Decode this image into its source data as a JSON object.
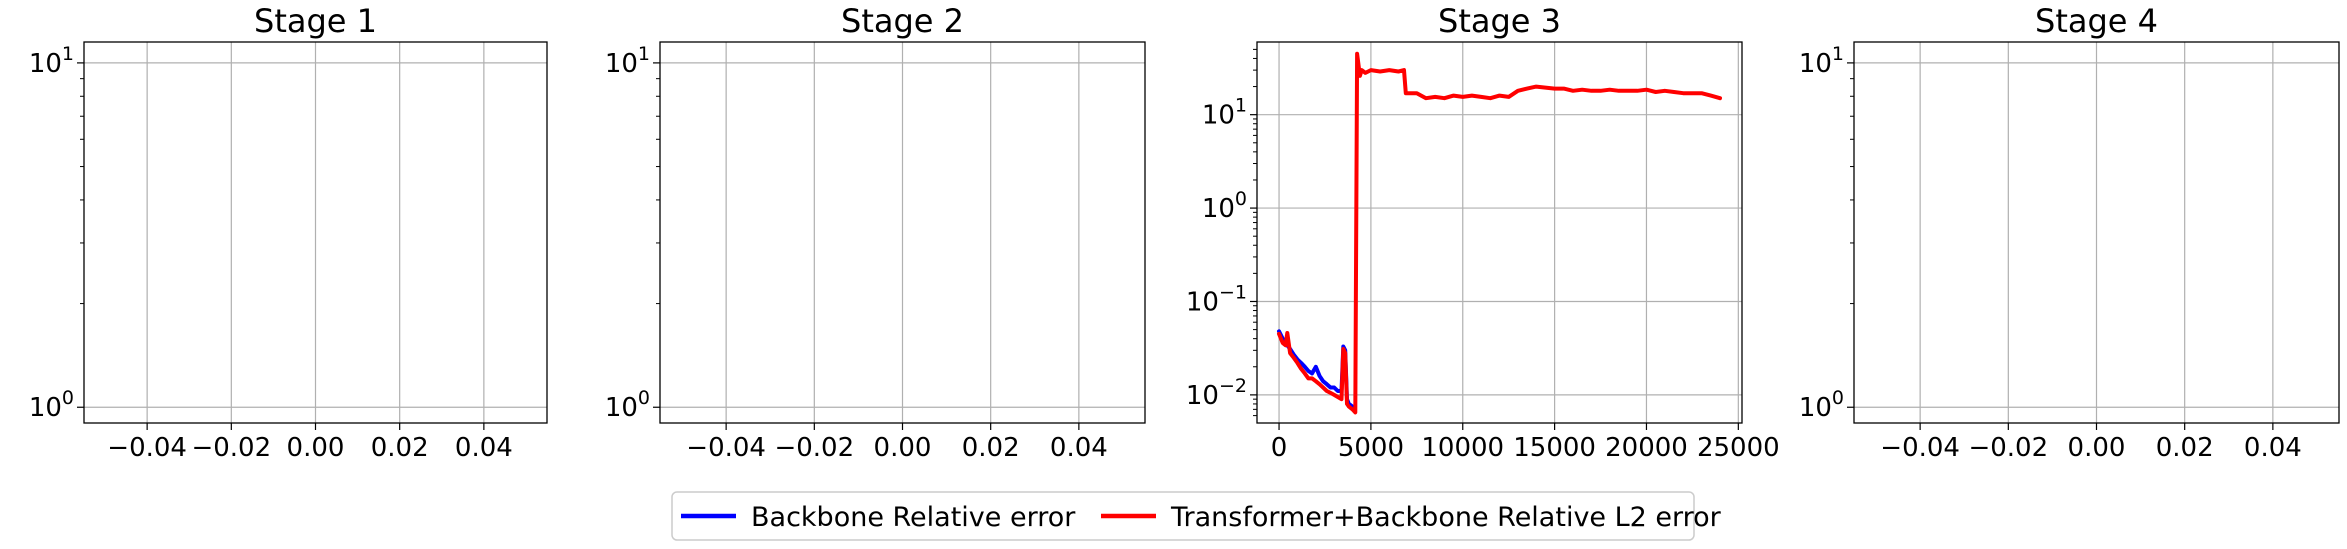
{
  "chart_data": [
    {
      "type": "line",
      "title": "Stage 1",
      "xscale": "linear",
      "yscale": "log",
      "xlim": [
        -0.055,
        0.055
      ],
      "ylim": [
        0.9,
        11.5
      ],
      "xticks": [
        -0.04,
        -0.02,
        0.0,
        0.02,
        0.04
      ],
      "xtick_labels": [
        "−0.04",
        "−0.02",
        "0.00",
        "0.02",
        "0.04"
      ],
      "yticks": [
        1,
        10
      ],
      "ytick_labels": [
        {
          "base": "10",
          "exp": "0"
        },
        {
          "base": "10",
          "exp": "1"
        }
      ],
      "grid": true,
      "series": []
    },
    {
      "type": "line",
      "title": "Stage 2",
      "xscale": "linear",
      "yscale": "log",
      "xlim": [
        -0.055,
        0.055
      ],
      "ylim": [
        0.9,
        11.5
      ],
      "xticks": [
        -0.04,
        -0.02,
        0.0,
        0.02,
        0.04
      ],
      "xtick_labels": [
        "−0.04",
        "−0.02",
        "0.00",
        "0.02",
        "0.04"
      ],
      "yticks": [
        1,
        10
      ],
      "ytick_labels": [
        {
          "base": "10",
          "exp": "0"
        },
        {
          "base": "10",
          "exp": "1"
        }
      ],
      "grid": true,
      "series": []
    },
    {
      "type": "line",
      "title": "Stage 3",
      "xscale": "linear",
      "yscale": "log",
      "xlim": [
        -1200,
        25200
      ],
      "ylim": [
        0.005,
        60
      ],
      "xticks": [
        0,
        5000,
        10000,
        15000,
        20000,
        25000
      ],
      "xtick_labels": [
        "0",
        "5000",
        "10000",
        "15000",
        "20000",
        "25000"
      ],
      "yticks": [
        0.01,
        0.1,
        1,
        10
      ],
      "ytick_labels": [
        {
          "base": "10",
          "exp": "−2"
        },
        {
          "base": "10",
          "exp": "−1"
        },
        {
          "base": "10",
          "exp": "0"
        },
        {
          "base": "10",
          "exp": "1"
        }
      ],
      "grid": true,
      "series": [
        {
          "name": "Backbone Relative error",
          "color": "#0000ff",
          "x": [
            0,
            200,
            400,
            600,
            800,
            1000,
            1200,
            1400,
            1600,
            1800,
            2000,
            2200,
            2400,
            2600,
            2800,
            3000,
            3200,
            3400,
            3500,
            3600,
            3700,
            3800,
            4000,
            4100
          ],
          "y": [
            0.048,
            0.04,
            0.035,
            0.031,
            0.027,
            0.024,
            0.022,
            0.02,
            0.018,
            0.017,
            0.02,
            0.016,
            0.014,
            0.013,
            0.012,
            0.012,
            0.011,
            0.011,
            0.033,
            0.03,
            0.009,
            0.008,
            0.0075,
            0.007
          ]
        },
        {
          "name": "Transformer+Backbone Relative L2 error",
          "color": "#ff0000",
          "x": [
            0,
            200,
            350,
            450,
            600,
            800,
            1000,
            1200,
            1400,
            1600,
            1800,
            2000,
            2200,
            2400,
            2600,
            2800,
            3000,
            3200,
            3400,
            3500,
            3600,
            3700,
            3800,
            4000,
            4150,
            4250,
            4400,
            4500,
            4700,
            5000,
            5500,
            6000,
            6500,
            6800,
            6900,
            7500,
            8000,
            8500,
            9000,
            9500,
            10000,
            10500,
            11000,
            11500,
            12000,
            12500,
            13000,
            13500,
            14000,
            14500,
            15000,
            15500,
            16000,
            16500,
            17000,
            17500,
            18000,
            18500,
            19000,
            19500,
            20000,
            20500,
            21000,
            21500,
            22000,
            22500,
            23000,
            23500,
            24000
          ],
          "y": [
            0.045,
            0.036,
            0.034,
            0.046,
            0.028,
            0.025,
            0.022,
            0.019,
            0.017,
            0.015,
            0.015,
            0.014,
            0.013,
            0.012,
            0.011,
            0.0105,
            0.01,
            0.0095,
            0.009,
            0.031,
            0.028,
            0.008,
            0.0075,
            0.007,
            0.0065,
            45,
            26,
            30,
            28,
            30,
            29,
            30,
            29,
            30,
            17,
            17,
            15,
            15.5,
            15,
            16,
            15.5,
            16,
            15.5,
            15,
            16,
            15.5,
            18,
            19,
            20,
            19.5,
            19,
            19,
            18,
            18.5,
            18,
            18,
            18.5,
            18,
            18,
            18,
            18.5,
            17.5,
            18,
            17.5,
            17,
            17,
            17,
            16,
            15
          ]
        }
      ]
    },
    {
      "type": "line",
      "title": "Stage 4",
      "xscale": "linear",
      "yscale": "log",
      "xlim": [
        -0.055,
        0.055
      ],
      "ylim": [
        0.9,
        11.5
      ],
      "xticks": [
        -0.04,
        -0.02,
        0.0,
        0.02,
        0.04
      ],
      "xtick_labels": [
        "−0.04",
        "−0.02",
        "0.00",
        "0.02",
        "0.04"
      ],
      "yticks": [
        1,
        10
      ],
      "ytick_labels": [
        {
          "base": "10",
          "exp": "0"
        },
        {
          "base": "10",
          "exp": "1"
        }
      ],
      "grid": true,
      "series": []
    }
  ],
  "legend": {
    "placement": "bottom-center",
    "entries": [
      {
        "label": "Backbone Relative error",
        "color": "#0000ff"
      },
      {
        "label": "Transformer+Backbone Relative L2 error",
        "color": "#ff0000"
      }
    ]
  }
}
